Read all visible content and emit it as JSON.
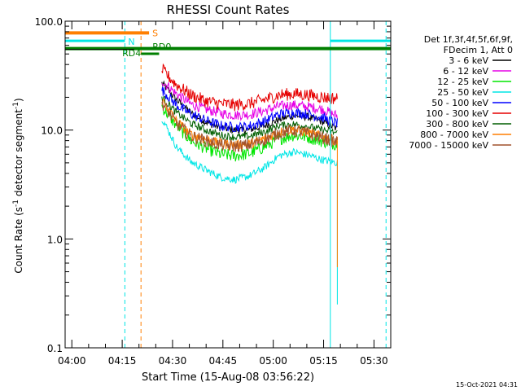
{
  "chart_data": {
    "type": "line",
    "title": "RHESSI Count Rates",
    "xlabel": "Start Time (15-Aug-08 03:56:22)",
    "ylabel_parts": {
      "pre": "Count Rate (s",
      "sup1": "-1",
      "mid": " detector segment",
      "sup2": "-1",
      "post": ")"
    },
    "y_scale": "log",
    "ylim": [
      0.1,
      100.0
    ],
    "y_ticks": [
      {
        "v": 0.1,
        "label": "0.1"
      },
      {
        "v": 1.0,
        "label": "1.0"
      },
      {
        "v": 10.0,
        "label": "10.0"
      },
      {
        "v": 100.0,
        "label": "100.0"
      }
    ],
    "xlim_min": [
      2.0,
      99.0
    ],
    "x_ticks": [
      {
        "m": 4,
        "label": "04:00"
      },
      {
        "m": 19,
        "label": "04:15"
      },
      {
        "m": 34,
        "label": "04:30"
      },
      {
        "m": 49,
        "label": "04:45"
      },
      {
        "m": 64,
        "label": "05:00"
      },
      {
        "m": 79,
        "label": "05:15"
      },
      {
        "m": 94,
        "label": "05:30"
      }
    ],
    "legend_placement": "right",
    "legend_header": [
      "Det 1f,3f,4f,5f,6f,9f,",
      "FDecim 1, Att 0"
    ],
    "data_start_min": 30.8,
    "data_end_min": 83.1,
    "series": [
      {
        "name": "3 - 6 keV",
        "color": "#000000",
        "values": [
          27.0,
          19.0,
          14.3,
          11.9,
          10.5,
          10.0,
          10.1,
          10.9,
          12.5,
          13.6,
          13.2,
          11.9,
          10.2
        ]
      },
      {
        "name": "6 - 12 keV",
        "color": "#e600e6",
        "values": [
          28.5,
          21.5,
          17.3,
          15.5,
          14.3,
          13.7,
          13.9,
          15.0,
          16.6,
          17.0,
          16.4,
          15.5,
          13.5
        ]
      },
      {
        "name": "12 - 25 keV",
        "color": "#00e600",
        "values": [
          16.5,
          11.0,
          8.0,
          6.8,
          6.0,
          5.8,
          6.1,
          7.0,
          8.3,
          9.0,
          8.6,
          7.9,
          7.4
        ]
      },
      {
        "name": "25 - 50 keV",
        "color": "#00e6e6",
        "values": [
          13.0,
          7.0,
          5.1,
          4.3,
          3.7,
          3.5,
          3.8,
          4.5,
          5.8,
          6.3,
          5.9,
          5.3,
          5.0
        ]
      },
      {
        "name": "50 - 100 keV",
        "color": "#0000ff",
        "values": [
          23.5,
          17.0,
          14.0,
          12.3,
          11.0,
          10.6,
          10.9,
          12.0,
          14.0,
          14.5,
          14.0,
          13.0,
          11.5
        ]
      },
      {
        "name": "100 - 300 keV",
        "color": "#e60000",
        "values": [
          36.0,
          26.0,
          21.0,
          18.5,
          17.5,
          17.0,
          17.5,
          19.0,
          21.0,
          21.5,
          21.0,
          20.0,
          19.5
        ]
      },
      {
        "name": "300 - 800 keV",
        "color": "#005f00",
        "values": [
          20.0,
          14.5,
          11.5,
          10.0,
          9.0,
          8.6,
          8.8,
          9.6,
          11.0,
          11.3,
          10.8,
          10.0,
          9.4
        ]
      },
      {
        "name": "800 - 7000 keV",
        "color": "#ff7f00",
        "values": [
          19.0,
          12.0,
          9.1,
          8.2,
          7.5,
          7.3,
          7.5,
          8.3,
          9.6,
          10.1,
          9.5,
          8.7,
          7.9
        ]
      },
      {
        "name": "7000 - 15000 keV",
        "color": "#a0522d",
        "values": [
          18.0,
          11.5,
          8.8,
          8.0,
          7.3,
          7.1,
          7.3,
          8.1,
          9.4,
          9.9,
          9.3,
          8.5,
          7.7
        ]
      }
    ],
    "annotations": {
      "S": {
        "label": "S",
        "color": "#ff7f00",
        "x0_min": 2.0,
        "x1_min": 27.0,
        "y": 78.0
      },
      "N": {
        "label": "N",
        "color": "#00e6e6",
        "x0_min": 2.0,
        "x1_min": 19.8,
        "y": 66.0
      },
      "RD4": {
        "label": "RD4",
        "color": "#007f00"
      },
      "RD0": {
        "label": "RD0",
        "color": "#007f00"
      },
      "green_level": {
        "color": "#007f00",
        "y": 56.0
      },
      "right_cyan_bar": {
        "color": "#00e6e6",
        "x0_min": 81.0,
        "x1_min": 99.0,
        "y": 66.0
      },
      "vlines": [
        {
          "m": 2.0,
          "color": "#00e6e6",
          "style": "solid"
        },
        {
          "m": 19.8,
          "color": "#00e6e6",
          "style": "dash"
        },
        {
          "m": 24.6,
          "color": "#ff7f00",
          "style": "dash"
        },
        {
          "m": 81.0,
          "color": "#00e6e6",
          "style": "solid"
        },
        {
          "m": 97.6,
          "color": "#00e6e6",
          "style": "dash"
        }
      ]
    }
  },
  "footer_date": "15-Oct-2021 04:31"
}
